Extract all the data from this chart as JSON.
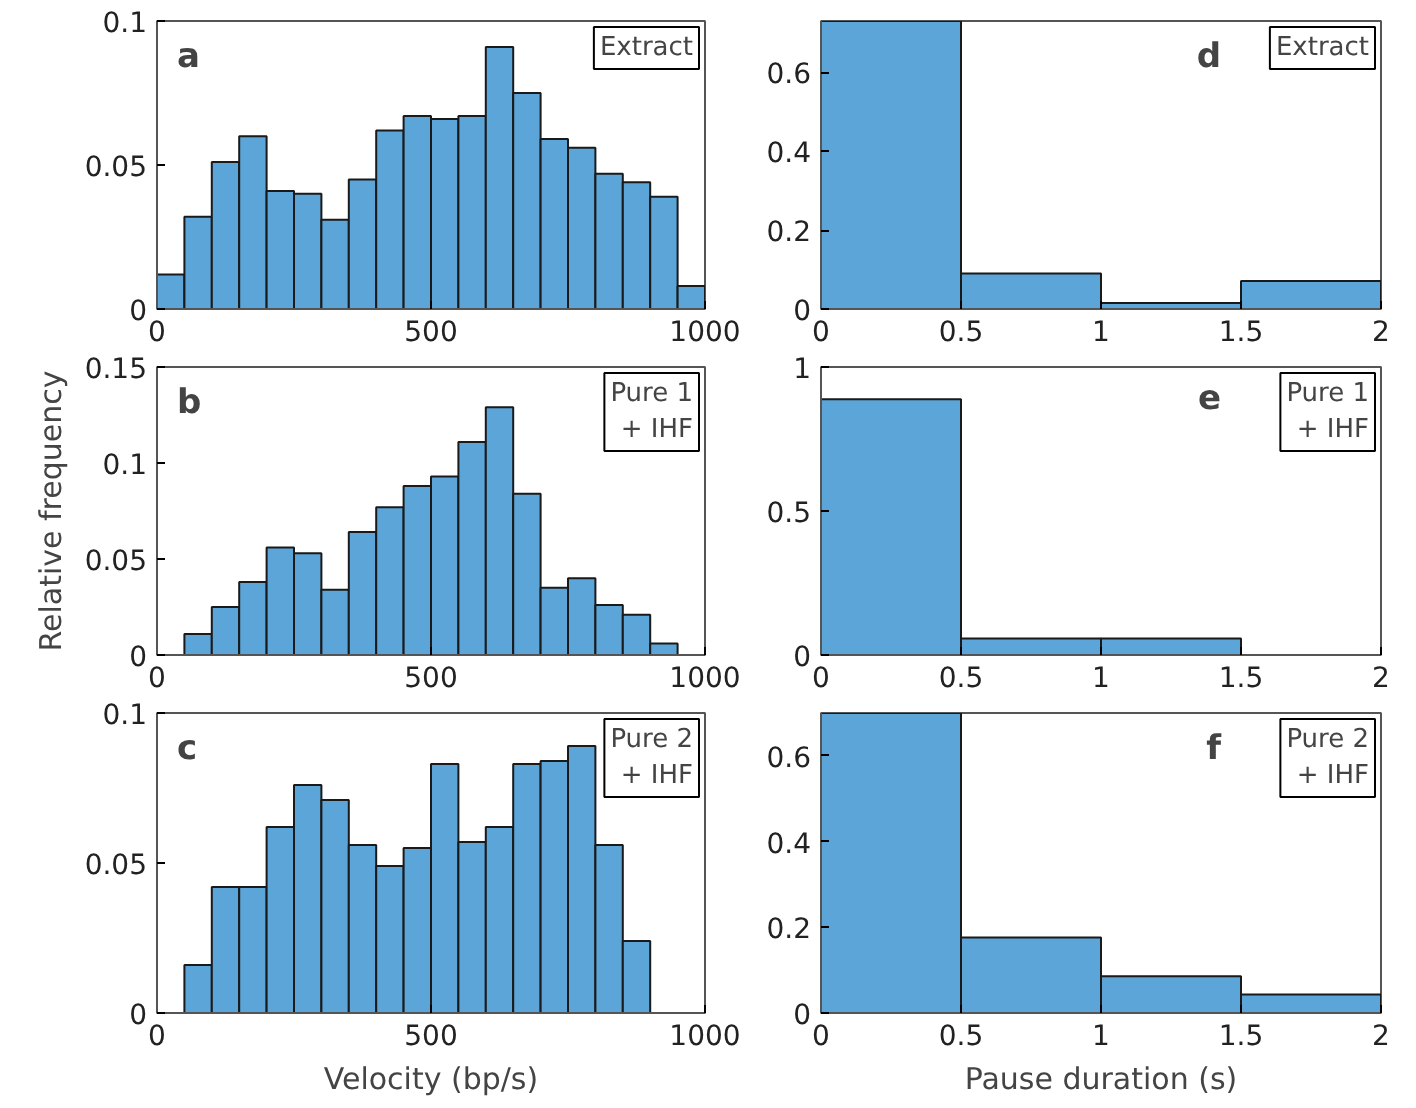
{
  "chart_data": [
    {
      "type": "histogram",
      "annotations": [
        "a",
        "Extract"
      ],
      "bins": [
        0,
        50,
        100,
        150,
        200,
        250,
        300,
        350,
        400,
        450,
        500,
        550,
        600,
        650,
        700,
        750,
        800,
        850,
        900,
        950,
        1000
      ],
      "values": [
        0.012,
        0.032,
        0.051,
        0.06,
        0.041,
        0.04,
        0.031,
        0.045,
        0.062,
        0.067,
        0.066,
        0.067,
        0.091,
        0.075,
        0.059,
        0.056,
        0.047,
        0.044,
        0.039,
        0.008
      ],
      "color": "#5ba5d8",
      "xlim": [
        0,
        1000
      ],
      "ylim": [
        0,
        0.1
      ],
      "xticks": [
        0,
        500,
        1000
      ],
      "yticks": [
        0,
        0.05,
        0.1
      ],
      "grid": false
    },
    {
      "type": "histogram",
      "annotations": [
        "d",
        "Extract"
      ],
      "bins": [
        0,
        0.5,
        1,
        1.5,
        2
      ],
      "values": [
        0.73,
        0.09,
        0.015,
        0.071
      ],
      "color": "#5ba5d8",
      "xlim": [
        0,
        2
      ],
      "ylim": [
        0,
        0.73
      ],
      "xticks": [
        0,
        0.5,
        1,
        1.5,
        2
      ],
      "yticks": [
        0,
        0.2,
        0.4,
        0.6
      ],
      "grid": false
    },
    {
      "type": "histogram",
      "ylabel": "Relative frequency",
      "annotations": [
        "b",
        "Pure 1\n+ IHF"
      ],
      "bins": [
        50,
        100,
        150,
        200,
        250,
        300,
        350,
        400,
        450,
        500,
        550,
        600,
        650,
        700,
        750,
        800,
        850,
        900,
        950,
        1000
      ],
      "values": [
        0.011,
        0.025,
        0.038,
        0.056,
        0.053,
        0.034,
        0.064,
        0.077,
        0.088,
        0.093,
        0.111,
        0.129,
        0.084,
        0.035,
        0.04,
        0.026,
        0.021,
        0.006,
        null
      ],
      "color": "#5ba5d8",
      "xlim": [
        0,
        1000
      ],
      "ylim": [
        0,
        0.15
      ],
      "xticks": [
        0,
        500,
        1000
      ],
      "yticks": [
        0,
        0.05,
        0.1,
        0.15
      ],
      "grid": false
    },
    {
      "type": "histogram",
      "annotations": [
        "e",
        "Pure 1\n+ IHF"
      ],
      "bins": [
        0,
        0.5,
        1,
        1.5
      ],
      "values": [
        0.888,
        0.057,
        0.057
      ],
      "color": "#5ba5d8",
      "xlim": [
        0,
        2
      ],
      "ylim": [
        0,
        1
      ],
      "xticks": [
        0,
        0.5,
        1,
        1.5,
        2
      ],
      "yticks": [
        0,
        0.5,
        1
      ],
      "grid": false
    },
    {
      "type": "histogram",
      "xlabel": "Velocity (bp/s)",
      "annotations": [
        "c",
        "Pure 2\n+ IHF"
      ],
      "bins": [
        50,
        100,
        150,
        200,
        250,
        300,
        350,
        400,
        450,
        500,
        550,
        600,
        650,
        700,
        750,
        800,
        850,
        900
      ],
      "values": [
        0.016,
        0.042,
        0.042,
        0.062,
        0.076,
        0.071,
        0.056,
        0.049,
        0.055,
        0.083,
        0.057,
        0.062,
        0.083,
        0.084,
        0.089,
        0.056,
        0.024
      ],
      "color": "#5ba5d8",
      "xlim": [
        0,
        1000
      ],
      "ylim": [
        0,
        0.1
      ],
      "xticks": [
        0,
        500,
        1000
      ],
      "yticks": [
        0,
        0.05,
        0.1
      ],
      "grid": false
    },
    {
      "type": "histogram",
      "xlabel": "Pause duration (s)",
      "annotations": [
        "f",
        "Pure 2\n+ IHF"
      ],
      "bins": [
        0,
        0.5,
        1,
        1.5,
        2
      ],
      "values": [
        0.7,
        0.176,
        0.086,
        0.043
      ],
      "color": "#5ba5d8",
      "xlim": [
        0,
        2
      ],
      "ylim": [
        0,
        0.7
      ],
      "xticks": [
        0,
        0.5,
        1,
        1.5,
        2
      ],
      "yticks": [
        0,
        0.2,
        0.4,
        0.6
      ],
      "grid": false
    }
  ]
}
